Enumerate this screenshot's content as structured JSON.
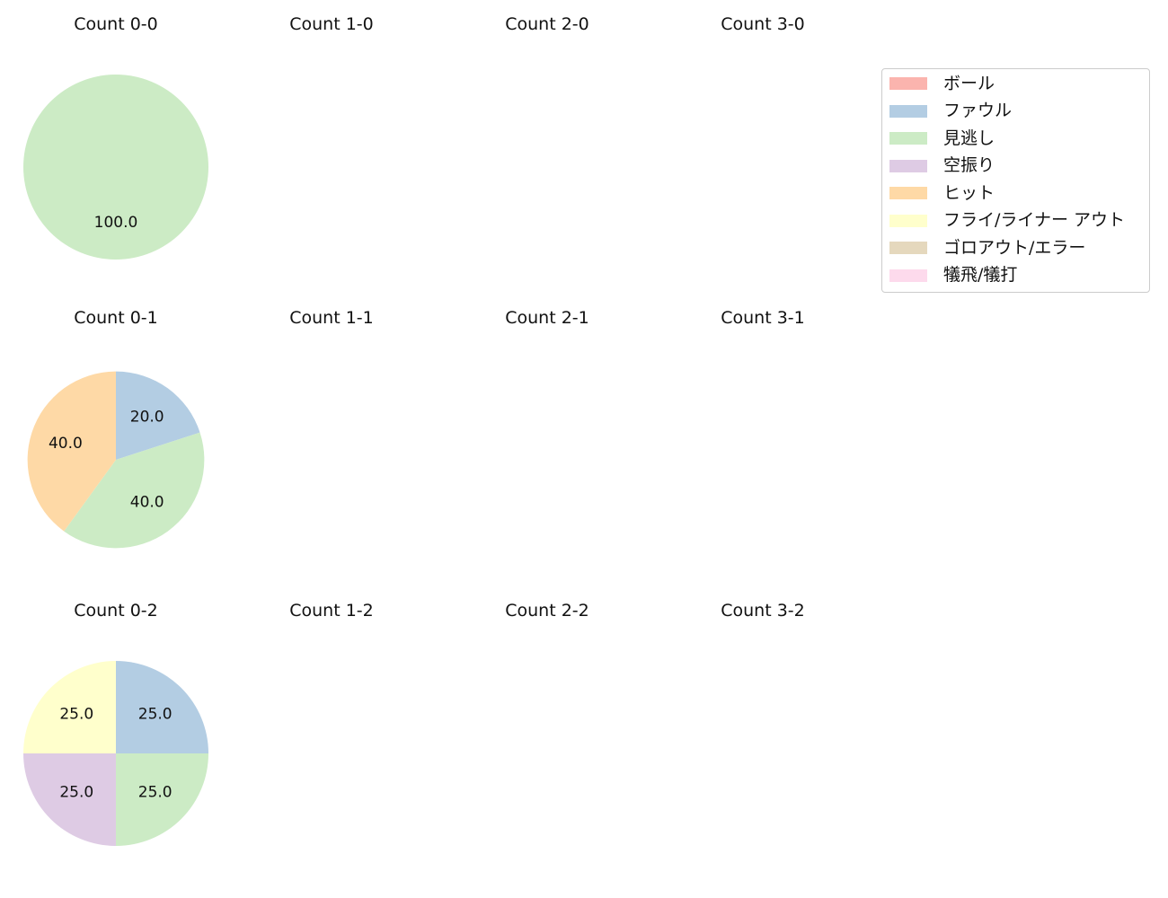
{
  "chart_data": {
    "type": "pie",
    "legend": {
      "placement": "top-right",
      "entries": [
        {
          "name": "ボール",
          "color": "#fbb4ae"
        },
        {
          "name": "ファウル",
          "color": "#b3cde3"
        },
        {
          "name": "見逃し",
          "color": "#ccebc5"
        },
        {
          "name": "空振り",
          "color": "#decbe4"
        },
        {
          "name": "ヒット",
          "color": "#fed9a6"
        },
        {
          "name": "フライ/ライナー アウト",
          "color": "#ffffcc"
        },
        {
          "name": "ゴロアウト/エラー",
          "color": "#e5d8bd"
        },
        {
          "name": "犠飛/犠打",
          "color": "#fddaec"
        }
      ]
    },
    "subplots": [
      {
        "title": "Count 0-0",
        "slices": [
          {
            "category": "見逃し",
            "value": 100.0,
            "label": "100.0"
          }
        ]
      },
      {
        "title": "Count 1-0",
        "slices": []
      },
      {
        "title": "Count 2-0",
        "slices": []
      },
      {
        "title": "Count 3-0",
        "slices": []
      },
      {
        "title": "Count 0-1",
        "slices": [
          {
            "category": "ファウル",
            "value": 20.0,
            "label": "20.0"
          },
          {
            "category": "見逃し",
            "value": 40.0,
            "label": "40.0"
          },
          {
            "category": "ヒット",
            "value": 40.0,
            "label": "40.0"
          }
        ]
      },
      {
        "title": "Count 1-1",
        "slices": []
      },
      {
        "title": "Count 2-1",
        "slices": []
      },
      {
        "title": "Count 3-1",
        "slices": []
      },
      {
        "title": "Count 0-2",
        "slices": [
          {
            "category": "ファウル",
            "value": 25.0,
            "label": "25.0"
          },
          {
            "category": "見逃し",
            "value": 25.0,
            "label": "25.0"
          },
          {
            "category": "空振り",
            "value": 25.0,
            "label": "25.0"
          },
          {
            "category": "フライ/ライナー アウト",
            "value": 25.0,
            "label": "25.0"
          }
        ]
      },
      {
        "title": "Count 1-2",
        "slices": []
      },
      {
        "title": "Count 2-2",
        "slices": []
      },
      {
        "title": "Count 3-2",
        "slices": []
      }
    ]
  }
}
